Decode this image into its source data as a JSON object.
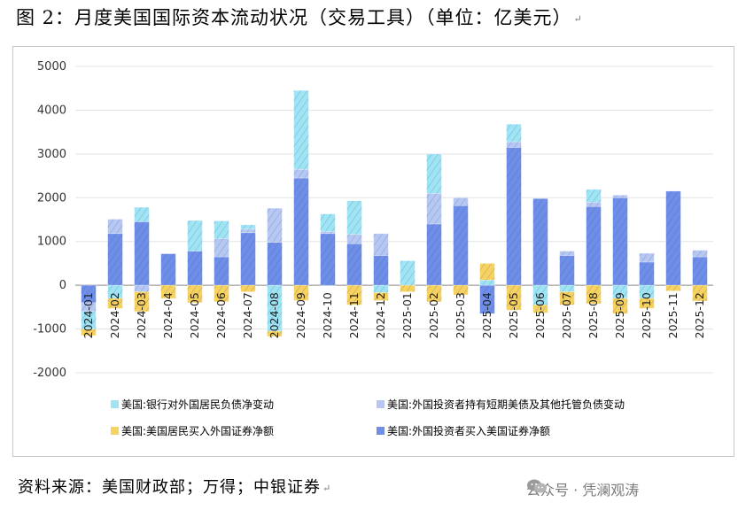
{
  "title": "图 2：月度美国国际资本流动状况（交易工具）（单位：亿美元）",
  "paragraph_mark": "↵",
  "source": "资料来源：美国财政部；万得；中银证券",
  "watermark": "公众号 · 凭澜观涛",
  "colors": {
    "bank": "#9fe4f3",
    "short_term": "#b6c8f2",
    "resident": "#f7d25e",
    "foreign_securities": "#6e8ee8"
  },
  "chart_data": {
    "type": "bar",
    "stacked": true,
    "title": "",
    "xlabel": "",
    "ylabel": "",
    "ylim": [
      -2000,
      5000
    ],
    "yticks": [
      5000,
      4000,
      3000,
      2000,
      1000,
      0,
      -1000,
      -2000
    ],
    "legend_position": "bottom",
    "categories": [
      "2024-01",
      "2024-02",
      "2024-03",
      "2024-04",
      "2024-05",
      "2024-06",
      "2024-07",
      "2024-08",
      "2024-09",
      "2024-10",
      "2024-11",
      "2024-12",
      "2025-01",
      "2025-02",
      "2025-03",
      "2025-04",
      "2025-05",
      "2025-06",
      "2025-07",
      "2025-08",
      "2025-09",
      "2025-10",
      "2025-11",
      "2025-12"
    ],
    "series": [
      {
        "name": "美国:外国投资者买入美国证券净额",
        "color_key": "foreign_securities",
        "values": [
          -400,
          1180,
          1450,
          720,
          780,
          650,
          1200,
          980,
          2450,
          1180,
          950,
          680,
          0,
          1400,
          1820,
          -650,
          3150,
          1980,
          680,
          1800,
          2000,
          530,
          2150,
          650
        ]
      },
      {
        "name": "美国:外国投资者持有短期美债及其他托管负债变动",
        "color_key": "short_term",
        "values": [
          -200,
          330,
          -150,
          0,
          0,
          420,
          80,
          780,
          200,
          50,
          210,
          500,
          0,
          700,
          180,
          0,
          130,
          0,
          100,
          100,
          60,
          200,
          0,
          150
        ]
      },
      {
        "name": "美国:银行对外国居民负债净变动",
        "color_key": "bank",
        "values": [
          -400,
          -300,
          330,
          0,
          700,
          400,
          100,
          -1050,
          1800,
          400,
          770,
          -170,
          560,
          900,
          0,
          120,
          400,
          -450,
          -150,
          290,
          -300,
          -300,
          0,
          0
        ]
      },
      {
        "name": "美国:美国居民买入外国证券净额",
        "color_key": "resident",
        "values": [
          -150,
          -230,
          -450,
          -300,
          -400,
          -380,
          -150,
          -120,
          -350,
          0,
          -450,
          -180,
          -150,
          -380,
          -220,
          380,
          -570,
          -180,
          -300,
          -420,
          -350,
          -230,
          -130,
          -360
        ]
      }
    ],
    "legend": [
      {
        "label": "美国:银行对外国居民负债净变动",
        "color_key": "bank"
      },
      {
        "label": "美国:外国投资者持有短期美债及其他托管负债变动",
        "color_key": "short_term"
      },
      {
        "label": "美国:美国居民买入外国证券净额",
        "color_key": "resident"
      },
      {
        "label": "美国:外国投资者买入美国证券净额",
        "color_key": "foreign_securities"
      }
    ]
  }
}
